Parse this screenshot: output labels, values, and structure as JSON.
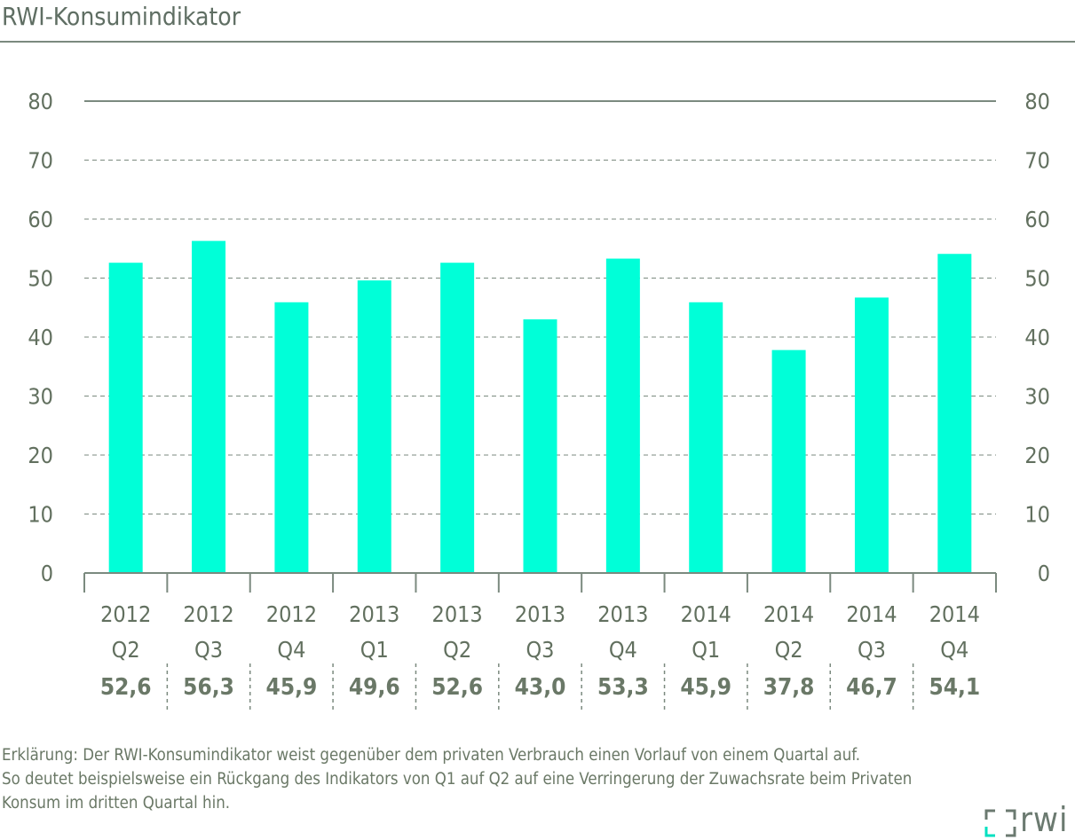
{
  "header": {
    "title": "RWI-Konsumindikator"
  },
  "chart_data": {
    "type": "bar",
    "categories": [
      [
        "2012",
        "Q2"
      ],
      [
        "2012",
        "Q3"
      ],
      [
        "2012",
        "Q4"
      ],
      [
        "2013",
        "Q1"
      ],
      [
        "2013",
        "Q2"
      ],
      [
        "2013",
        "Q3"
      ],
      [
        "2013",
        "Q4"
      ],
      [
        "2014",
        "Q1"
      ],
      [
        "2014",
        "Q2"
      ],
      [
        "2014",
        "Q3"
      ],
      [
        "2014",
        "Q4"
      ]
    ],
    "values": [
      52.6,
      56.3,
      45.9,
      49.6,
      52.6,
      43.0,
      53.3,
      45.9,
      37.8,
      46.7,
      54.1
    ],
    "value_labels": [
      "52,6",
      "56,3",
      "45,9",
      "49,6",
      "52,6",
      "43,0",
      "53,3",
      "45,9",
      "37,8",
      "46,7",
      "54,1"
    ],
    "ylim": [
      0,
      80
    ],
    "yticks": [
      0,
      10,
      20,
      30,
      40,
      50,
      60,
      70,
      80
    ],
    "grid": true,
    "axes": "left-and-right",
    "bar_color": "#00ffd8",
    "grid_color": "#7b8a7f"
  },
  "footnote": {
    "lines": [
      "Erklärung: Der RWI-Konsumindikator weist gegenüber dem privaten Verbrauch einen Vorlauf von einem Quartal auf.",
      "So deutet beispielsweise ein Rückgang des Indikators von Q1 auf Q2 auf eine Verringerung der Zuwachsrate beim Privaten",
      "Konsum im dritten Quartal hin."
    ]
  },
  "logo": {
    "text": "rwi",
    "icon": "rwi-bracket-logo-icon"
  }
}
